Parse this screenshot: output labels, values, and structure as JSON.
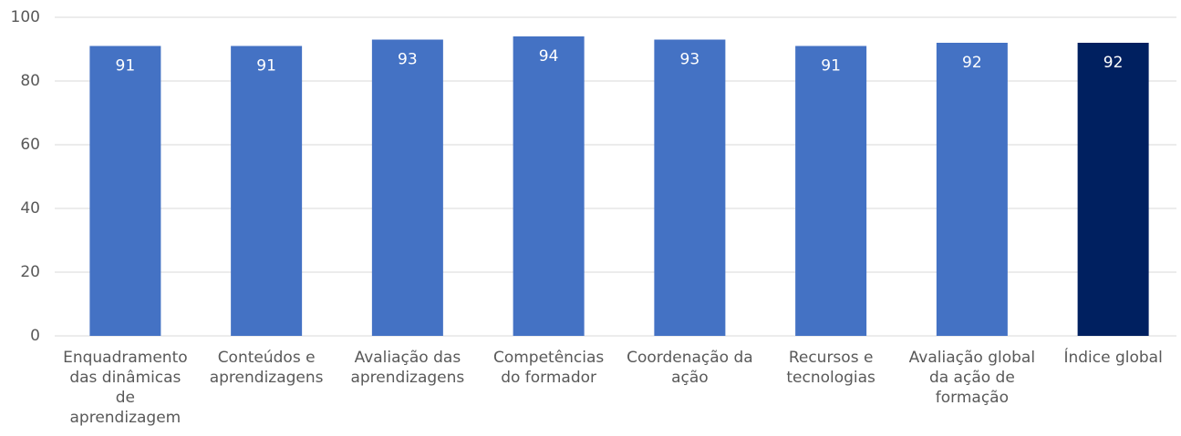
{
  "chart_data": {
    "type": "bar",
    "categories": [
      "Enquadramento das dinâmicas de aprendizagem",
      "Conteúdos e aprendizagens",
      "Avaliação das aprendizagens",
      "Competências do formador",
      "Coordenação da ação",
      "Recursos e tecnologias",
      "Avaliação global da ação de formação",
      "Índice global"
    ],
    "values": [
      91,
      91,
      93,
      94,
      93,
      91,
      92,
      92
    ],
    "colors": [
      "#4472c4",
      "#4472c4",
      "#4472c4",
      "#4472c4",
      "#4472c4",
      "#4472c4",
      "#4472c4",
      "#002060"
    ],
    "ylim": [
      0,
      100
    ],
    "yticks": [
      0,
      20,
      40,
      60,
      80,
      100
    ],
    "grid": true
  }
}
